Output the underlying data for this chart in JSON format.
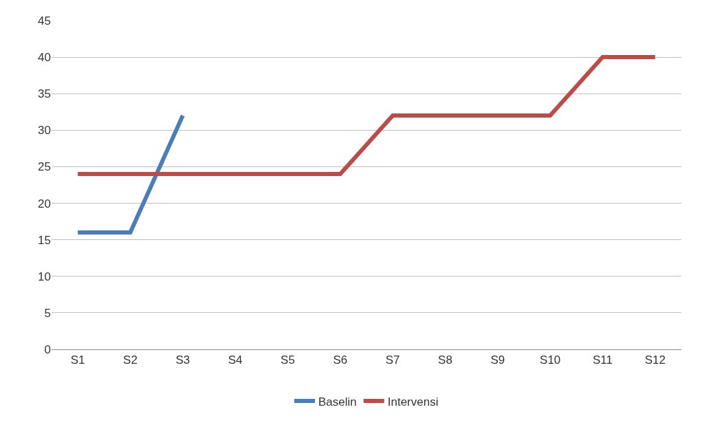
{
  "chart_data": {
    "type": "line",
    "categories": [
      "S1",
      "S2",
      "S3",
      "S4",
      "S5",
      "S6",
      "S7",
      "S8",
      "S9",
      "S10",
      "S11",
      "S12"
    ],
    "series": [
      {
        "name": "Baselin",
        "color": "#4a7ebb",
        "values": [
          16,
          16,
          32,
          null,
          null,
          null,
          null,
          null,
          null,
          null,
          null,
          null
        ]
      },
      {
        "name": "Intervensi",
        "color": "#be4b48",
        "values": [
          24,
          24,
          24,
          24,
          24,
          24,
          32,
          32,
          32,
          32,
          40,
          40
        ]
      }
    ],
    "ylim": [
      0,
      45
    ],
    "yticks": [
      0,
      5,
      10,
      15,
      20,
      25,
      30,
      35,
      40,
      45
    ],
    "grid": "y",
    "legend": "bottom",
    "marker": "none",
    "line_style": "solid"
  }
}
